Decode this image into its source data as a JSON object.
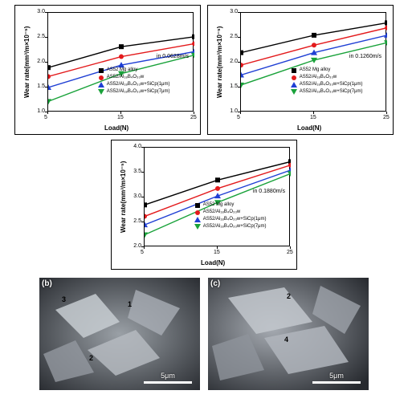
{
  "legend_labels": {
    "s1": "AS52 Mg alloy",
    "s2": "AS52/Al₁₈B₄O₃₃w",
    "s3": "AS52/Al₁₈B₄O₃₃w+SiCp(1μm)",
    "s4": "AS52/Al₁₈B₄O₃₃w+SiCp(7μm)"
  },
  "axis": {
    "x": "Load(N)",
    "y": "Wear rate(mm³/m×10⁻⁵)"
  },
  "charts": [
    {
      "speed": "in 0.0628m/s",
      "xlim": [
        5,
        25
      ],
      "xticks": [
        5,
        15,
        25
      ],
      "ylim": [
        1.0,
        3.0
      ],
      "yticks": [
        1.0,
        1.5,
        2.0,
        2.5,
        3.0
      ],
      "series": [
        {
          "key": "s1",
          "color": "#000000",
          "marker": "sq",
          "pts": [
            [
              5,
              1.9
            ],
            [
              15,
              2.32
            ],
            [
              25,
              2.52
            ]
          ]
        },
        {
          "key": "s2",
          "color": "#e31a1c",
          "marker": "ci",
          "pts": [
            [
              5,
              1.72
            ],
            [
              15,
              2.12
            ],
            [
              25,
              2.38
            ]
          ]
        },
        {
          "key": "s3",
          "color": "#1f3fd4",
          "marker": "tri-up",
          "pts": [
            [
              5,
              1.5
            ],
            [
              15,
              1.95
            ],
            [
              25,
              2.22
            ]
          ]
        },
        {
          "key": "s4",
          "color": "#19a23a",
          "marker": "tri-dn",
          "pts": [
            [
              5,
              1.22
            ],
            [
              15,
              1.78
            ],
            [
              25,
              2.15
            ]
          ]
        }
      ]
    },
    {
      "speed": "in 0.1260m/s",
      "xlim": [
        5,
        25
      ],
      "xticks": [
        5,
        15,
        25
      ],
      "ylim": [
        1.0,
        3.0
      ],
      "yticks": [
        1.0,
        1.5,
        2.0,
        2.5,
        3.0
      ],
      "series": [
        {
          "key": "s1",
          "color": "#000000",
          "marker": "sq",
          "pts": [
            [
              5,
              2.2
            ],
            [
              15,
              2.55
            ],
            [
              25,
              2.8
            ]
          ]
        },
        {
          "key": "s2",
          "color": "#e31a1c",
          "marker": "ci",
          "pts": [
            [
              5,
              1.95
            ],
            [
              15,
              2.35
            ],
            [
              25,
              2.7
            ]
          ]
        },
        {
          "key": "s3",
          "color": "#1f3fd4",
          "marker": "tri-up",
          "pts": [
            [
              5,
              1.75
            ],
            [
              15,
              2.2
            ],
            [
              25,
              2.55
            ]
          ]
        },
        {
          "key": "s4",
          "color": "#19a23a",
          "marker": "tri-dn",
          "pts": [
            [
              5,
              1.55
            ],
            [
              15,
              2.05
            ],
            [
              25,
              2.4
            ]
          ]
        }
      ]
    },
    {
      "speed": "in 0.1880m/s",
      "xlim": [
        5,
        25
      ],
      "xticks": [
        5,
        15,
        25
      ],
      "ylim": [
        2.0,
        4.0
      ],
      "yticks": [
        2.0,
        2.5,
        3.0,
        3.5,
        4.0
      ],
      "series": [
        {
          "key": "s1",
          "color": "#000000",
          "marker": "sq",
          "pts": [
            [
              5,
              2.85
            ],
            [
              15,
              3.35
            ],
            [
              25,
              3.72
            ]
          ]
        },
        {
          "key": "s2",
          "color": "#e31a1c",
          "marker": "ci",
          "pts": [
            [
              5,
              2.62
            ],
            [
              15,
              3.18
            ],
            [
              25,
              3.65
            ]
          ]
        },
        {
          "key": "s3",
          "color": "#1f3fd4",
          "marker": "tri-up",
          "pts": [
            [
              5,
              2.45
            ],
            [
              15,
              3.03
            ],
            [
              25,
              3.55
            ]
          ]
        },
        {
          "key": "s4",
          "color": "#19a23a",
          "marker": "tri-dn",
          "pts": [
            [
              5,
              2.25
            ],
            [
              15,
              2.9
            ],
            [
              25,
              3.48
            ]
          ]
        }
      ]
    }
  ],
  "sem": {
    "scale": "5μm",
    "b": {
      "label": "(b)",
      "ann": [
        "1",
        "2",
        "3"
      ]
    },
    "c": {
      "label": "(c)",
      "ann": [
        "2",
        "4"
      ]
    }
  }
}
